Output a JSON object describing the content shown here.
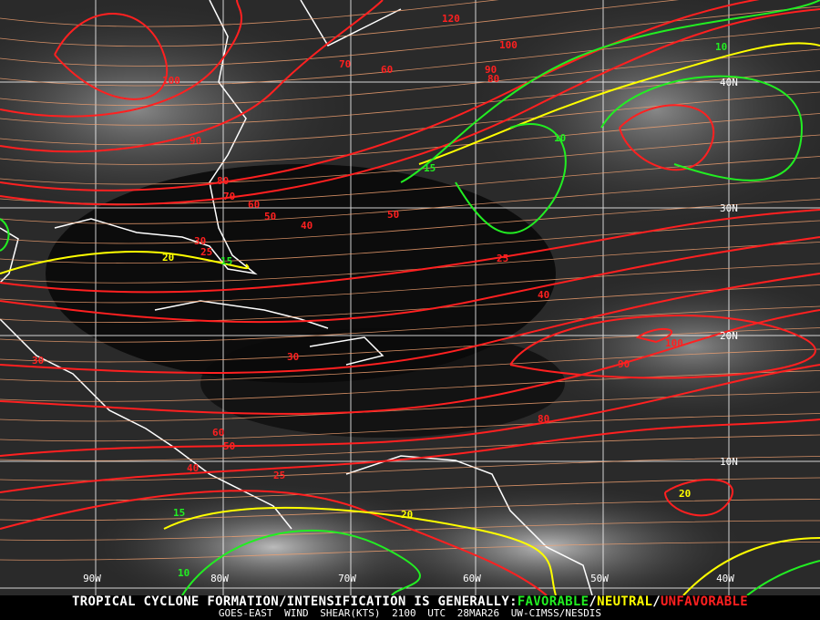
{
  "footer": {
    "headline": "TROPICAL CYCLONE FORMATION/INTENSIFICATION IS GENERALLY:",
    "favorable": "FAVORABLE",
    "separator": "/",
    "neutral": "NEUTRAL",
    "unfavorable": "UNFAVORABLE",
    "product": "GOES-EAST WIND SHEAR(KTS)",
    "time": "2100 UTC",
    "date": "28MAR26",
    "source": "UW-CIMSS/NESDIS"
  },
  "colors": {
    "favorable": "#22ee22",
    "neutral": "#ffff00",
    "unfavorable": "#ff2020",
    "streamline": "#f0a070",
    "coastline": "#ffffff",
    "grid": "#ffffff"
  },
  "grid": {
    "longitude_labels": [
      "90W",
      "80W",
      "70W",
      "60W",
      "50W",
      "40W"
    ],
    "latitude_labels": [
      "40N",
      "30N",
      "20N",
      "10N"
    ]
  },
  "contour_labels": [
    "100",
    "90",
    "80",
    "70",
    "60",
    "50",
    "40",
    "30",
    "25",
    "20",
    "15",
    "10",
    "120",
    "100",
    "90",
    "80",
    "70",
    "60",
    "50",
    "40",
    "30",
    "25",
    "20",
    "15",
    "10",
    "100",
    "90",
    "80",
    "60",
    "50",
    "40",
    "30",
    "25",
    "20",
    "15",
    "10"
  ]
}
